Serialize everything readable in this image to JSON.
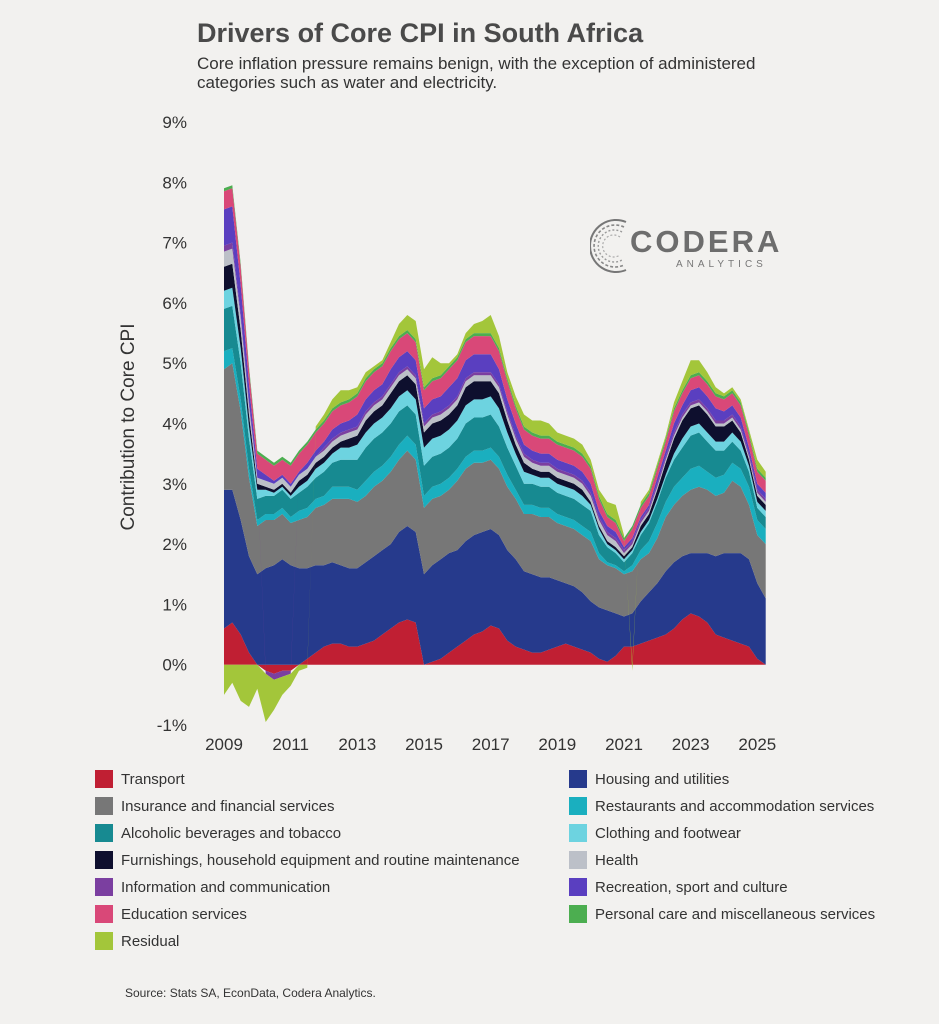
{
  "header": {
    "title": "Drivers of Core CPI in South Africa",
    "subtitle": "Core inflation pressure remains benign, with the exception of administered categories such as water and electricity."
  },
  "logo": {
    "word": "CODERA",
    "sub": "ANALYTICS"
  },
  "source": "Source: Stats SA, EconData, Codera Analytics.",
  "chart_data": {
    "type": "area",
    "stacked": true,
    "ylabel": "Contribution to Core CPI",
    "xlabel": "",
    "ylim": [
      -1,
      9
    ],
    "xlim": [
      2009,
      2025.5
    ],
    "yticks": [
      -1,
      0,
      1,
      2,
      3,
      4,
      5,
      6,
      7,
      8,
      9
    ],
    "ytick_labels": [
      "-1%",
      "0%",
      "1%",
      "2%",
      "3%",
      "4%",
      "5%",
      "6%",
      "7%",
      "8%",
      "9%"
    ],
    "xticks": [
      2009,
      2011,
      2013,
      2015,
      2017,
      2019,
      2021,
      2023,
      2025
    ],
    "xtick_labels": [
      "2009",
      "2011",
      "2013",
      "2015",
      "2017",
      "2019",
      "2021",
      "2023",
      "2025"
    ],
    "grid": false,
    "legend_position": "bottom",
    "x": [
      2009.0,
      2009.25,
      2009.5,
      2009.75,
      2010.0,
      2010.25,
      2010.5,
      2010.75,
      2011.0,
      2011.25,
      2011.5,
      2011.75,
      2012.0,
      2012.25,
      2012.5,
      2012.75,
      2013.0,
      2013.25,
      2013.5,
      2013.75,
      2014.0,
      2014.25,
      2014.5,
      2014.75,
      2015.0,
      2015.25,
      2015.5,
      2015.75,
      2016.0,
      2016.25,
      2016.5,
      2016.75,
      2017.0,
      2017.25,
      2017.5,
      2017.75,
      2018.0,
      2018.25,
      2018.5,
      2018.75,
      2019.0,
      2019.25,
      2019.5,
      2019.75,
      2020.0,
      2020.25,
      2020.5,
      2020.75,
      2021.0,
      2021.25,
      2021.5,
      2021.75,
      2022.0,
      2022.25,
      2022.5,
      2022.75,
      2023.0,
      2023.25,
      2023.5,
      2023.75,
      2024.0,
      2024.25,
      2024.5,
      2024.75,
      2025.0,
      2025.25
    ],
    "series": [
      {
        "name": "Transport",
        "color": "#c01f33",
        "values": [
          0.6,
          0.7,
          0.5,
          0.2,
          0.0,
          -0.1,
          -0.15,
          -0.1,
          -0.1,
          0.0,
          0.1,
          0.2,
          0.3,
          0.35,
          0.35,
          0.3,
          0.3,
          0.35,
          0.4,
          0.5,
          0.6,
          0.7,
          0.75,
          0.7,
          0.0,
          0.05,
          0.1,
          0.2,
          0.3,
          0.4,
          0.5,
          0.55,
          0.65,
          0.6,
          0.4,
          0.3,
          0.25,
          0.2,
          0.2,
          0.25,
          0.3,
          0.35,
          0.3,
          0.25,
          0.2,
          0.1,
          0.05,
          0.15,
          0.3,
          0.3,
          0.35,
          0.4,
          0.45,
          0.5,
          0.6,
          0.75,
          0.85,
          0.8,
          0.7,
          0.5,
          0.45,
          0.4,
          0.35,
          0.3,
          0.1,
          0.0
        ]
      },
      {
        "name": "Housing and utilities",
        "color": "#263a8c",
        "values": [
          2.3,
          2.2,
          1.9,
          1.6,
          1.5,
          1.6,
          1.65,
          1.75,
          1.65,
          1.6,
          1.5,
          1.45,
          1.35,
          1.35,
          1.3,
          1.3,
          1.3,
          1.35,
          1.4,
          1.4,
          1.4,
          1.5,
          1.55,
          1.5,
          1.5,
          1.6,
          1.65,
          1.65,
          1.6,
          1.65,
          1.65,
          1.65,
          1.6,
          1.55,
          1.5,
          1.45,
          1.3,
          1.3,
          1.25,
          1.2,
          1.1,
          1.0,
          1.0,
          0.95,
          0.85,
          0.85,
          0.85,
          0.7,
          0.5,
          0.55,
          0.7,
          0.8,
          0.9,
          1.05,
          1.1,
          1.05,
          1.0,
          1.05,
          1.15,
          1.3,
          1.4,
          1.45,
          1.5,
          1.45,
          1.25,
          1.1
        ]
      },
      {
        "name": "Insurance and financial services",
        "color": "#777777",
        "values": [
          2.0,
          2.1,
          1.8,
          1.3,
          0.8,
          0.8,
          0.75,
          0.75,
          0.7,
          0.8,
          0.85,
          0.95,
          1.0,
          1.05,
          1.1,
          1.15,
          1.1,
          1.1,
          1.15,
          1.15,
          1.2,
          1.2,
          1.25,
          1.2,
          1.1,
          1.1,
          1.05,
          1.05,
          1.15,
          1.2,
          1.2,
          1.15,
          1.15,
          1.1,
          1.05,
          1.0,
          0.95,
          1.0,
          1.0,
          1.0,
          0.95,
          0.95,
          0.95,
          0.95,
          1.0,
          0.8,
          0.75,
          0.75,
          0.7,
          0.7,
          0.7,
          0.65,
          0.75,
          0.9,
          0.95,
          1.0,
          1.05,
          1.1,
          1.05,
          1.0,
          1.0,
          1.2,
          1.1,
          0.9,
          0.8,
          0.9
        ]
      },
      {
        "name": "Restaurants and accommodation services",
        "color": "#1aafbf",
        "values": [
          0.3,
          0.25,
          0.2,
          0.15,
          0.1,
          0.1,
          0.1,
          0.1,
          0.1,
          0.15,
          0.15,
          0.15,
          0.15,
          0.2,
          0.2,
          0.2,
          0.2,
          0.25,
          0.25,
          0.25,
          0.25,
          0.25,
          0.25,
          0.25,
          0.2,
          0.2,
          0.2,
          0.2,
          0.2,
          0.2,
          0.2,
          0.2,
          0.2,
          0.2,
          0.2,
          0.15,
          0.15,
          0.15,
          0.15,
          0.15,
          0.15,
          0.15,
          0.15,
          0.15,
          0.15,
          0.1,
          0.05,
          0.05,
          0.05,
          0.1,
          0.15,
          0.2,
          0.25,
          0.25,
          0.3,
          0.3,
          0.35,
          0.35,
          0.3,
          0.3,
          0.3,
          0.3,
          0.3,
          0.3,
          0.25,
          0.25
        ]
      },
      {
        "name": "Alcoholic beverages and tobacco",
        "color": "#178a91",
        "values": [
          0.7,
          0.7,
          0.6,
          0.5,
          0.35,
          0.3,
          0.3,
          0.3,
          0.3,
          0.3,
          0.35,
          0.35,
          0.4,
          0.4,
          0.45,
          0.45,
          0.5,
          0.55,
          0.55,
          0.55,
          0.55,
          0.55,
          0.5,
          0.5,
          0.5,
          0.5,
          0.5,
          0.5,
          0.5,
          0.55,
          0.55,
          0.55,
          0.55,
          0.5,
          0.45,
          0.4,
          0.35,
          0.35,
          0.35,
          0.35,
          0.35,
          0.35,
          0.35,
          0.35,
          0.35,
          0.3,
          0.25,
          0.2,
          0.15,
          0.2,
          0.25,
          0.3,
          0.35,
          0.4,
          0.45,
          0.5,
          0.55,
          0.55,
          0.5,
          0.45,
          0.4,
          0.35,
          0.3,
          0.25,
          0.2,
          0.2
        ]
      },
      {
        "name": "Clothing and footwear",
        "color": "#6dd3e0",
        "values": [
          0.3,
          0.3,
          0.25,
          0.2,
          0.15,
          0.1,
          0.05,
          0.05,
          0.05,
          0.1,
          0.1,
          0.15,
          0.15,
          0.15,
          0.2,
          0.2,
          0.25,
          0.25,
          0.25,
          0.25,
          0.25,
          0.25,
          0.25,
          0.25,
          0.3,
          0.3,
          0.3,
          0.3,
          0.3,
          0.3,
          0.3,
          0.3,
          0.3,
          0.3,
          0.25,
          0.2,
          0.2,
          0.15,
          0.15,
          0.15,
          0.15,
          0.15,
          0.15,
          0.15,
          0.1,
          0.1,
          0.05,
          0.05,
          0.05,
          0.05,
          0.05,
          0.05,
          0.05,
          0.05,
          0.1,
          0.15,
          0.15,
          0.15,
          0.15,
          0.15,
          0.15,
          0.15,
          0.15,
          0.1,
          0.1,
          0.1
        ]
      },
      {
        "name": "Furnishings, household equipment and routine maintenance",
        "color": "#0e0f2e",
        "values": [
          0.4,
          0.4,
          0.3,
          0.2,
          0.1,
          0.05,
          0.05,
          0.05,
          0.05,
          0.1,
          0.1,
          0.1,
          0.1,
          0.1,
          0.1,
          0.15,
          0.15,
          0.2,
          0.2,
          0.2,
          0.25,
          0.25,
          0.25,
          0.25,
          0.25,
          0.25,
          0.25,
          0.25,
          0.25,
          0.3,
          0.3,
          0.3,
          0.25,
          0.25,
          0.2,
          0.15,
          0.15,
          0.1,
          0.1,
          0.1,
          0.1,
          0.1,
          0.1,
          0.1,
          0.05,
          0.05,
          0.05,
          0.05,
          0.05,
          0.05,
          0.1,
          0.1,
          0.15,
          0.2,
          0.25,
          0.3,
          0.3,
          0.3,
          0.3,
          0.25,
          0.25,
          0.2,
          0.15,
          0.1,
          0.1,
          0.1
        ]
      },
      {
        "name": "Health",
        "color": "#bcc0c8",
        "values": [
          0.25,
          0.25,
          0.2,
          0.15,
          0.1,
          0.1,
          0.1,
          0.1,
          0.1,
          0.1,
          0.1,
          0.1,
          0.1,
          0.1,
          0.1,
          0.1,
          0.1,
          0.1,
          0.1,
          0.1,
          0.1,
          0.1,
          0.1,
          0.1,
          0.1,
          0.1,
          0.1,
          0.1,
          0.1,
          0.1,
          0.1,
          0.1,
          0.1,
          0.1,
          0.1,
          0.1,
          0.1,
          0.1,
          0.1,
          0.1,
          0.1,
          0.1,
          0.1,
          0.1,
          0.1,
          0.1,
          0.1,
          0.1,
          0.05,
          0.05,
          0.05,
          0.05,
          0.05,
          0.05,
          0.05,
          0.05,
          0.05,
          0.05,
          0.05,
          0.05,
          0.05,
          0.05,
          0.05,
          0.05,
          0.05,
          0.05
        ]
      },
      {
        "name": "Information and communication",
        "color": "#7b3fa0",
        "values": [
          0.1,
          0.1,
          0.05,
          0.05,
          0.0,
          -0.05,
          -0.1,
          -0.1,
          -0.05,
          0.0,
          0.0,
          0.0,
          0.05,
          0.05,
          0.05,
          0.05,
          0.05,
          0.05,
          0.05,
          0.05,
          0.05,
          0.05,
          0.05,
          0.05,
          0.05,
          0.05,
          0.05,
          0.05,
          0.05,
          0.05,
          0.05,
          0.05,
          0.05,
          0.05,
          0.05,
          0.05,
          0.05,
          0.05,
          0.05,
          0.05,
          0.05,
          0.05,
          0.05,
          0.05,
          0.05,
          0.05,
          0.05,
          0.05,
          0.05,
          0.05,
          0.05,
          0.05,
          0.05,
          0.05,
          0.05,
          0.05,
          0.05,
          0.05,
          0.05,
          0.05,
          0.05,
          0.05,
          0.05,
          0.05,
          0.05,
          0.05
        ]
      },
      {
        "name": "Recreation, sport and culture",
        "color": "#5a3fc0",
        "values": [
          0.6,
          0.6,
          0.5,
          0.3,
          0.15,
          0.1,
          0.05,
          0.05,
          0.05,
          0.05,
          0.1,
          0.1,
          0.1,
          0.15,
          0.15,
          0.15,
          0.2,
          0.2,
          0.2,
          0.2,
          0.25,
          0.25,
          0.25,
          0.25,
          0.25,
          0.25,
          0.25,
          0.3,
          0.3,
          0.3,
          0.3,
          0.3,
          0.3,
          0.25,
          0.2,
          0.2,
          0.15,
          0.15,
          0.15,
          0.15,
          0.15,
          0.15,
          0.15,
          0.15,
          0.15,
          0.1,
          0.1,
          0.1,
          0.05,
          0.05,
          0.05,
          0.05,
          0.1,
          0.1,
          0.15,
          0.15,
          0.2,
          0.2,
          0.2,
          0.2,
          0.15,
          0.15,
          0.15,
          0.1,
          0.1,
          0.1
        ]
      },
      {
        "name": "Education services",
        "color": "#d94878",
        "values": [
          0.3,
          0.3,
          0.3,
          0.25,
          0.25,
          0.25,
          0.25,
          0.25,
          0.3,
          0.3,
          0.3,
          0.3,
          0.3,
          0.3,
          0.3,
          0.3,
          0.3,
          0.3,
          0.3,
          0.3,
          0.3,
          0.3,
          0.3,
          0.3,
          0.3,
          0.3,
          0.3,
          0.3,
          0.3,
          0.3,
          0.3,
          0.3,
          0.3,
          0.3,
          0.3,
          0.25,
          0.25,
          0.25,
          0.25,
          0.25,
          0.25,
          0.25,
          0.25,
          0.25,
          0.25,
          0.2,
          0.15,
          0.15,
          0.1,
          0.15,
          0.15,
          0.15,
          0.15,
          0.15,
          0.2,
          0.2,
          0.2,
          0.2,
          0.2,
          0.2,
          0.2,
          0.2,
          0.2,
          0.2,
          0.2,
          0.2
        ]
      },
      {
        "name": "Personal care and miscellaneous services",
        "color": "#4cae50",
        "values": [
          0.05,
          0.05,
          0.05,
          0.05,
          0.05,
          0.05,
          0.05,
          0.05,
          0.05,
          0.05,
          0.05,
          0.05,
          0.05,
          0.05,
          0.05,
          0.05,
          0.05,
          0.05,
          0.05,
          0.05,
          0.05,
          0.05,
          0.05,
          0.05,
          0.05,
          0.05,
          0.05,
          0.05,
          0.05,
          0.05,
          0.05,
          0.05,
          0.05,
          0.05,
          0.05,
          0.05,
          0.05,
          0.05,
          0.05,
          0.05,
          0.05,
          0.05,
          0.05,
          0.05,
          0.05,
          0.05,
          0.05,
          0.05,
          0.05,
          0.05,
          0.05,
          0.05,
          0.05,
          0.05,
          0.05,
          0.05,
          0.05,
          0.05,
          0.05,
          0.05,
          0.05,
          0.05,
          0.05,
          0.05,
          0.05,
          0.05
        ]
      },
      {
        "name": "Residual",
        "color": "#a3c63a",
        "values": [
          -0.5,
          -0.3,
          -0.6,
          -0.7,
          -0.4,
          -0.8,
          -0.5,
          -0.3,
          -0.2,
          -0.1,
          -0.05,
          0.05,
          0.1,
          0.15,
          0.2,
          0.15,
          0.1,
          0.1,
          0.05,
          0.05,
          0.1,
          0.2,
          0.25,
          0.3,
          0.3,
          0.35,
          0.2,
          0.05,
          0.05,
          0.1,
          0.15,
          0.2,
          0.3,
          0.2,
          0.1,
          0.15,
          0.2,
          0.2,
          0.25,
          0.2,
          0.15,
          0.15,
          0.15,
          0.15,
          0.1,
          0.1,
          0.2,
          0.25,
          0.05,
          -0.1,
          0.05,
          0.05,
          0.05,
          0.05,
          0.1,
          0.15,
          0.25,
          0.2,
          0.15,
          0.1,
          0.05,
          0.05,
          0.05,
          0.05,
          0.15,
          0.1
        ]
      }
    ]
  },
  "legend_order": [
    "Transport",
    "Housing and utilities",
    "Insurance and financial services",
    "Restaurants and accommodation services",
    "Alcoholic beverages and tobacco",
    "Clothing and footwear",
    "Furnishings, household equipment and routine maintenance",
    "Health",
    "Information and communication",
    "Recreation, sport and culture",
    "Education services",
    "Personal care and miscellaneous services",
    "Residual"
  ]
}
